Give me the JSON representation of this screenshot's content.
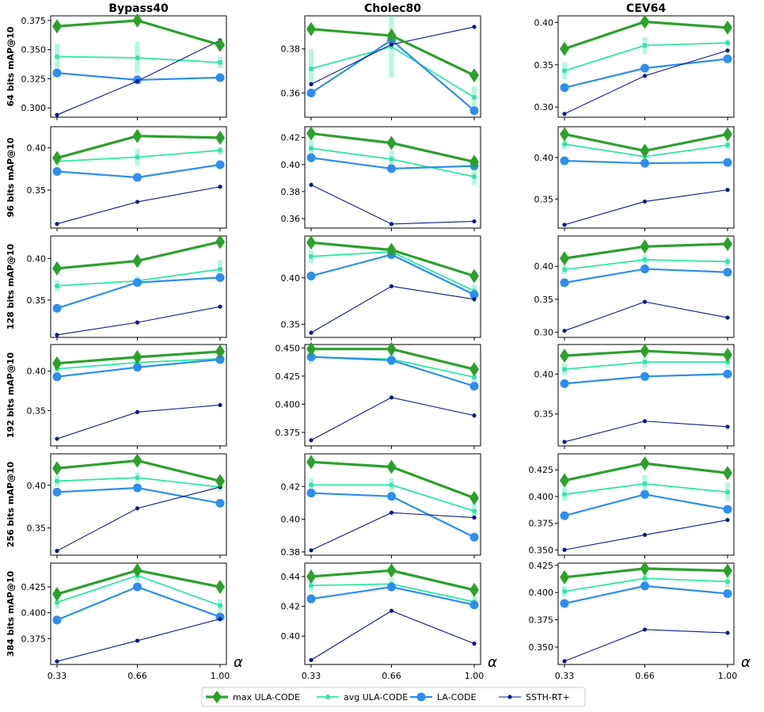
{
  "chart_data": {
    "type": "line",
    "x": [
      0.33,
      0.66,
      1.0
    ],
    "x_tick_labels": [
      "0.33",
      "0.66",
      "1.00"
    ],
    "x_axis_symbol": "α",
    "columns": [
      "Bypass40",
      "Cholec80",
      "CEV64"
    ],
    "row_labels": [
      "64 bits mAP@10",
      "96 bits mAP@10",
      "128 bits mAP@10",
      "192 bits mAP@10",
      "256 bits mAP@10",
      "384 bits mAP@10"
    ],
    "series_styles": [
      {
        "name": "max ULA-CODE",
        "color": "#2ca02c",
        "marker": "diamond"
      },
      {
        "name": "avg ULA-CODE",
        "color": "#2ee8a0",
        "marker": "circle-small"
      },
      {
        "name": "LA-CODE",
        "color": "#2b8ef0",
        "marker": "circle"
      },
      {
        "name": "SSTH-RT+",
        "color": "#0a1a8a",
        "marker": "dot"
      }
    ],
    "legend": {
      "labels": [
        "max ULA-CODE",
        "avg ULA-CODE",
        "LA-CODE",
        "SSTH-RT+"
      ],
      "position": "bottom-center"
    },
    "panels": [
      {
        "row": 0,
        "col": 0,
        "ylim": [
          0.292,
          0.379
        ],
        "yticks": [
          0.3,
          0.325,
          0.35,
          0.375
        ],
        "ytick_labels": [
          "0.300",
          "0.325",
          "0.350",
          "0.375"
        ],
        "series": {
          "max": [
            0.37,
            0.375,
            0.354
          ],
          "avg": [
            0.344,
            0.343,
            0.339
          ],
          "avg_band": [
            [
              0.334,
              0.355
            ],
            [
              0.33,
              0.357
            ],
            [
              0.334,
              0.344
            ]
          ],
          "la": [
            0.33,
            0.324,
            0.326
          ],
          "ssth": [
            0.294,
            0.323,
            0.358
          ]
        }
      },
      {
        "row": 0,
        "col": 1,
        "ylim": [
          0.349,
          0.395
        ],
        "yticks": [
          0.36,
          0.38
        ],
        "ytick_labels": [
          "0.36",
          "0.38"
        ],
        "series": {
          "max": [
            0.389,
            0.386,
            0.368
          ],
          "avg": [
            0.371,
            0.381,
            0.358
          ],
          "avg_band": [
            [
              0.363,
              0.38
            ],
            [
              0.367,
              0.395
            ],
            [
              0.354,
              0.363
            ]
          ],
          "la": [
            0.36,
            0.384,
            0.352
          ],
          "ssth": [
            0.364,
            0.382,
            0.39
          ]
        }
      },
      {
        "row": 0,
        "col": 2,
        "ylim": [
          0.288,
          0.408
        ],
        "yticks": [
          0.3,
          0.35,
          0.4
        ],
        "ytick_labels": [
          "0.30",
          "0.35",
          "0.40"
        ],
        "series": {
          "max": [
            0.369,
            0.401,
            0.394
          ],
          "avg": [
            0.343,
            0.373,
            0.376
          ],
          "avg_band": [
            [
              0.333,
              0.353
            ],
            [
              0.363,
              0.383
            ],
            [
              0.372,
              0.38
            ]
          ],
          "la": [
            0.323,
            0.346,
            0.357
          ],
          "ssth": [
            0.292,
            0.337,
            0.367
          ]
        }
      },
      {
        "row": 1,
        "col": 0,
        "ylim": [
          0.305,
          0.425
        ],
        "yticks": [
          0.35,
          0.4
        ],
        "ytick_labels": [
          "0.35",
          "0.40"
        ],
        "series": {
          "max": [
            0.388,
            0.414,
            0.412
          ],
          "avg": [
            0.384,
            0.389,
            0.397
          ],
          "avg_band": [
            [
              0.378,
              0.391
            ],
            [
              0.379,
              0.399
            ],
            [
              0.392,
              0.401
            ]
          ],
          "la": [
            0.372,
            0.365,
            0.38
          ],
          "ssth": [
            0.31,
            0.336,
            0.354
          ]
        }
      },
      {
        "row": 1,
        "col": 1,
        "ylim": [
          0.353,
          0.428
        ],
        "yticks": [
          0.36,
          0.38,
          0.4,
          0.42
        ],
        "ytick_labels": [
          "0.36",
          "0.38",
          "0.40",
          "0.42"
        ],
        "series": {
          "max": [
            0.423,
            0.416,
            0.402
          ],
          "avg": [
            0.412,
            0.404,
            0.391
          ],
          "avg_band": [
            [
              0.406,
              0.418
            ],
            [
              0.398,
              0.41
            ],
            [
              0.385,
              0.397
            ]
          ],
          "la": [
            0.405,
            0.397,
            0.399
          ],
          "ssth": [
            0.385,
            0.356,
            0.358
          ]
        }
      },
      {
        "row": 1,
        "col": 2,
        "ylim": [
          0.315,
          0.437
        ],
        "yticks": [
          0.35,
          0.4
        ],
        "ytick_labels": [
          "0.35",
          "0.40"
        ],
        "series": {
          "max": [
            0.428,
            0.408,
            0.428
          ],
          "avg": [
            0.416,
            0.401,
            0.415
          ],
          "avg_band": [
            [
              0.41,
              0.422
            ],
            [
              0.396,
              0.406
            ],
            [
              0.41,
              0.42
            ]
          ],
          "la": [
            0.396,
            0.393,
            0.394
          ],
          "ssth": [
            0.319,
            0.347,
            0.361
          ]
        }
      },
      {
        "row": 2,
        "col": 0,
        "ylim": [
          0.305,
          0.427
        ],
        "yticks": [
          0.35,
          0.4
        ],
        "ytick_labels": [
          "0.35",
          "0.40"
        ],
        "series": {
          "max": [
            0.388,
            0.397,
            0.42
          ],
          "avg": [
            0.367,
            0.373,
            0.387
          ],
          "avg_band": [
            [
              0.36,
              0.374
            ],
            [
              0.367,
              0.379
            ],
            [
              0.377,
              0.398
            ]
          ],
          "la": [
            0.34,
            0.371,
            0.377
          ],
          "ssth": [
            0.308,
            0.323,
            0.342
          ]
        }
      },
      {
        "row": 2,
        "col": 1,
        "ylim": [
          0.336,
          0.445
        ],
        "yticks": [
          0.35,
          0.4
        ],
        "ytick_labels": [
          "0.35",
          "0.40"
        ],
        "series": {
          "max": [
            0.438,
            0.43,
            0.402
          ],
          "avg": [
            0.423,
            0.428,
            0.386
          ],
          "avg_band": [
            [
              0.416,
              0.43
            ],
            [
              0.422,
              0.434
            ],
            [
              0.38,
              0.393
            ]
          ],
          "la": [
            0.402,
            0.425,
            0.382
          ],
          "ssth": [
            0.341,
            0.391,
            0.377
          ]
        }
      },
      {
        "row": 2,
        "col": 2,
        "ylim": [
          0.292,
          0.446
        ],
        "yticks": [
          0.3,
          0.35,
          0.4
        ],
        "ytick_labels": [
          "0.30",
          "0.35",
          "0.40"
        ],
        "series": {
          "max": [
            0.412,
            0.43,
            0.434
          ],
          "avg": [
            0.395,
            0.41,
            0.407
          ],
          "avg_band": [
            [
              0.388,
              0.402
            ],
            [
              0.403,
              0.417
            ],
            [
              0.4,
              0.414
            ]
          ],
          "la": [
            0.375,
            0.396,
            0.391
          ],
          "ssth": [
            0.302,
            0.346,
            0.322
          ]
        }
      },
      {
        "row": 3,
        "col": 0,
        "ylim": [
          0.305,
          0.434
        ],
        "yticks": [
          0.35,
          0.4
        ],
        "ytick_labels": [
          "0.35",
          "0.40"
        ],
        "series": {
          "max": [
            0.41,
            0.418,
            0.425
          ],
          "avg": [
            0.403,
            0.411,
            0.416
          ],
          "avg_band": [
            [
              0.397,
              0.409
            ],
            [
              0.405,
              0.417
            ],
            [
              0.41,
              0.422
            ]
          ],
          "la": [
            0.393,
            0.405,
            0.415
          ],
          "ssth": [
            0.314,
            0.348,
            0.357
          ]
        }
      },
      {
        "row": 3,
        "col": 1,
        "ylim": [
          0.363,
          0.453
        ],
        "yticks": [
          0.375,
          0.4,
          0.425,
          0.45
        ],
        "ytick_labels": [
          "0.375",
          "0.400",
          "0.425",
          "0.450"
        ],
        "series": {
          "max": [
            0.449,
            0.449,
            0.431
          ],
          "avg": [
            0.442,
            0.44,
            0.424
          ],
          "avg_band": [
            [
              0.436,
              0.448
            ],
            [
              0.434,
              0.446
            ],
            [
              0.418,
              0.43
            ]
          ],
          "la": [
            0.442,
            0.439,
            0.416
          ],
          "ssth": [
            0.368,
            0.406,
            0.39
          ]
        }
      },
      {
        "row": 3,
        "col": 2,
        "ylim": [
          0.31,
          0.437
        ],
        "yticks": [
          0.35,
          0.4
        ],
        "ytick_labels": [
          "0.35",
          "0.40"
        ],
        "series": {
          "max": [
            0.423,
            0.429,
            0.424
          ],
          "avg": [
            0.406,
            0.415,
            0.415
          ],
          "avg_band": [
            [
              0.399,
              0.413
            ],
            [
              0.408,
              0.422
            ],
            [
              0.408,
              0.422
            ]
          ],
          "la": [
            0.388,
            0.397,
            0.4
          ],
          "ssth": [
            0.315,
            0.341,
            0.334
          ]
        }
      },
      {
        "row": 4,
        "col": 0,
        "ylim": [
          0.318,
          0.437
        ],
        "yticks": [
          0.35,
          0.4
        ],
        "ytick_labels": [
          "0.35",
          "0.40"
        ],
        "series": {
          "max": [
            0.42,
            0.429,
            0.405
          ],
          "avg": [
            0.405,
            0.409,
            0.398
          ],
          "avg_band": [
            [
              0.399,
              0.411
            ],
            [
              0.403,
              0.415
            ],
            [
              0.392,
              0.404
            ]
          ],
          "la": [
            0.392,
            0.397,
            0.379
          ],
          "ssth": [
            0.323,
            0.373,
            0.398
          ]
        }
      },
      {
        "row": 4,
        "col": 1,
        "ylim": [
          0.378,
          0.44
        ],
        "yticks": [
          0.38,
          0.4,
          0.42
        ],
        "ytick_labels": [
          "0.38",
          "0.40",
          "0.42"
        ],
        "series": {
          "max": [
            0.435,
            0.432,
            0.413
          ],
          "avg": [
            0.421,
            0.421,
            0.405
          ],
          "avg_band": [
            [
              0.417,
              0.425
            ],
            [
              0.417,
              0.425
            ],
            [
              0.401,
              0.41
            ]
          ],
          "la": [
            0.416,
            0.414,
            0.389
          ],
          "ssth": [
            0.381,
            0.404,
            0.401
          ]
        }
      },
      {
        "row": 4,
        "col": 2,
        "ylim": [
          0.345,
          0.44
        ],
        "yticks": [
          0.35,
          0.375,
          0.4,
          0.425
        ],
        "ytick_labels": [
          "0.350",
          "0.375",
          "0.400",
          "0.425"
        ],
        "series": {
          "max": [
            0.415,
            0.431,
            0.422
          ],
          "avg": [
            0.402,
            0.412,
            0.404
          ],
          "avg_band": [
            [
              0.396,
              0.408
            ],
            [
              0.404,
              0.42
            ],
            [
              0.396,
              0.413
            ]
          ],
          "la": [
            0.382,
            0.402,
            0.388
          ],
          "ssth": [
            0.35,
            0.364,
            0.378
          ]
        }
      },
      {
        "row": 5,
        "col": 0,
        "ylim": [
          0.35,
          0.448
        ],
        "yticks": [
          0.375,
          0.4,
          0.425
        ],
        "ytick_labels": [
          "0.375",
          "0.400",
          "0.425"
        ],
        "series": {
          "max": [
            0.418,
            0.441,
            0.425
          ],
          "avg": [
            0.41,
            0.436,
            0.407
          ],
          "avg_band": [
            [
              0.404,
              0.416
            ],
            [
              0.43,
              0.442
            ],
            [
              0.401,
              0.413
            ]
          ],
          "la": [
            0.393,
            0.425,
            0.396
          ],
          "ssth": [
            0.353,
            0.373,
            0.394
          ]
        }
      },
      {
        "row": 5,
        "col": 1,
        "ylim": [
          0.381,
          0.449
        ],
        "yticks": [
          0.4,
          0.42,
          0.44
        ],
        "ytick_labels": [
          "0.40",
          "0.42",
          "0.44"
        ],
        "series": {
          "max": [
            0.44,
            0.444,
            0.431
          ],
          "avg": [
            0.434,
            0.435,
            0.423
          ],
          "avg_band": [
            [
              0.43,
              0.438
            ],
            [
              0.431,
              0.439
            ],
            [
              0.419,
              0.427
            ]
          ],
          "la": [
            0.425,
            0.433,
            0.421
          ],
          "ssth": [
            0.384,
            0.417,
            0.395
          ]
        }
      },
      {
        "row": 5,
        "col": 2,
        "ylim": [
          0.334,
          0.427
        ],
        "yticks": [
          0.35,
          0.375,
          0.4,
          0.425
        ],
        "ytick_labels": [
          "0.350",
          "0.375",
          "0.400",
          "0.425"
        ],
        "series": {
          "max": [
            0.414,
            0.422,
            0.42
          ],
          "avg": [
            0.401,
            0.413,
            0.41
          ],
          "avg_band": [
            [
              0.396,
              0.406
            ],
            [
              0.408,
              0.418
            ],
            [
              0.405,
              0.415
            ]
          ],
          "la": [
            0.39,
            0.406,
            0.399
          ],
          "ssth": [
            0.337,
            0.366,
            0.363
          ]
        }
      }
    ]
  }
}
